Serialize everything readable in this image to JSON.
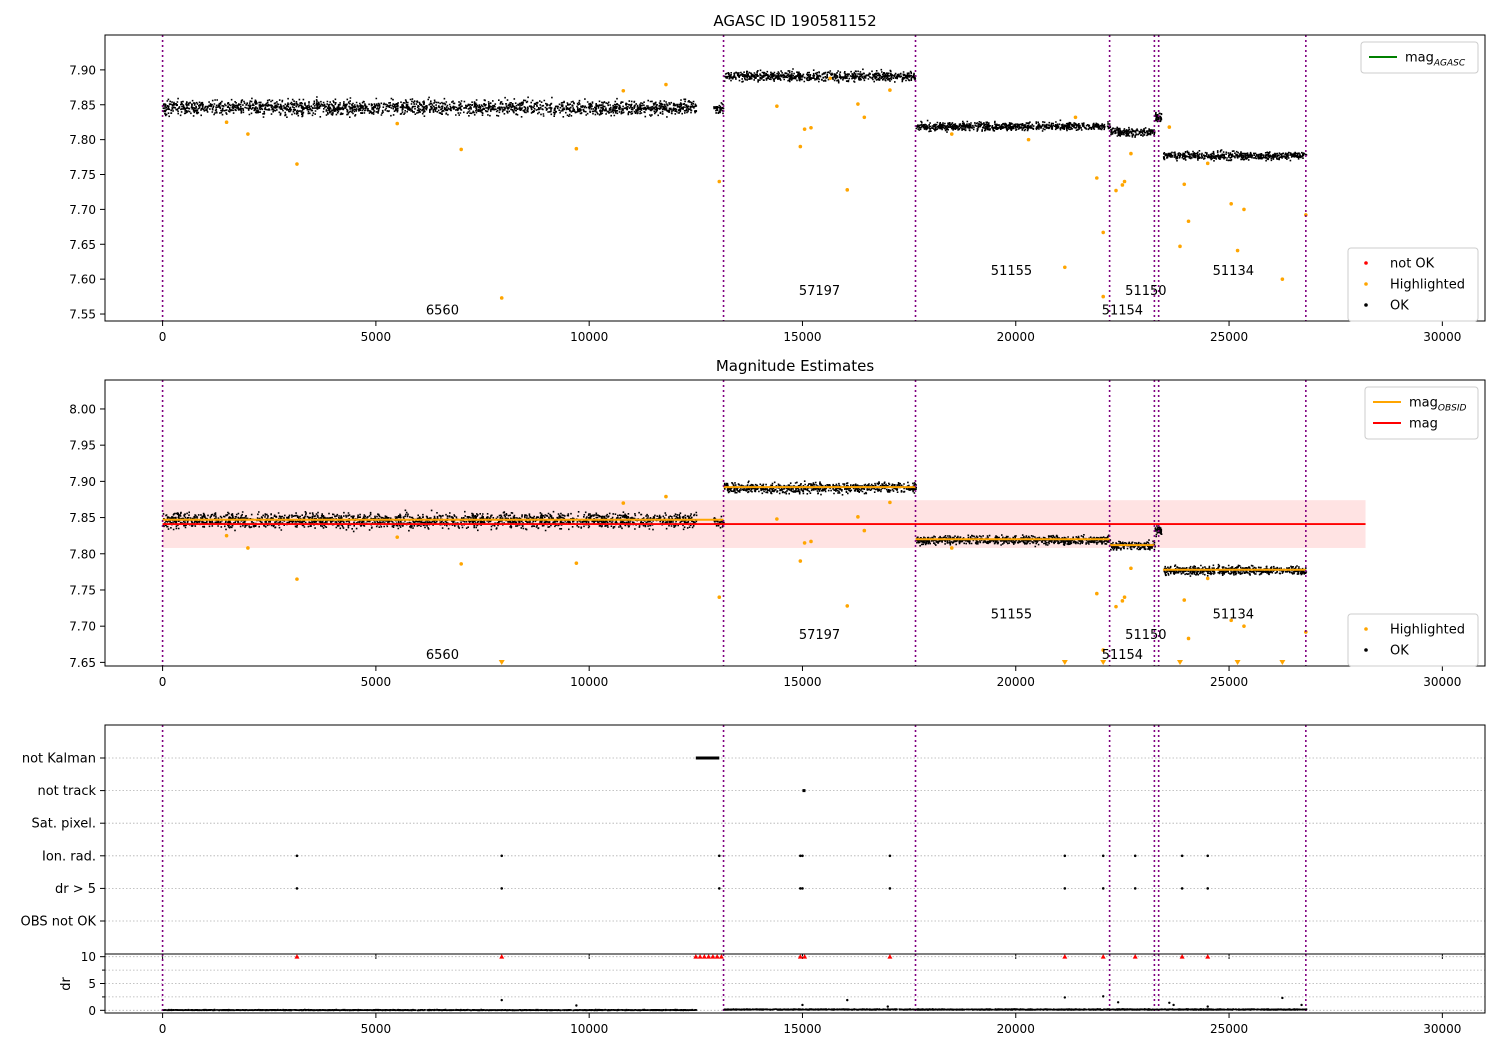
{
  "chart_data": [
    {
      "type": "scatter",
      "title": "AGASC ID 190581152",
      "xlim": [
        -1350,
        31000
      ],
      "ylim": [
        7.54,
        7.95
      ],
      "x_ticks": [
        0,
        5000,
        10000,
        15000,
        20000,
        25000,
        30000
      ],
      "y_ticks": [
        7.55,
        7.6,
        7.65,
        7.7,
        7.75,
        7.8,
        7.85,
        7.9
      ],
      "grid": false,
      "legend_upper": {
        "position": "upper right",
        "entries": [
          {
            "label": "mag",
            "sub": "AGASC",
            "color": "#008000"
          }
        ]
      },
      "legend_lower": {
        "position": "lower right",
        "entries": [
          {
            "label": "not OK",
            "color": "#ff0000"
          },
          {
            "label": "Highlighted",
            "color": "#ffa500"
          },
          {
            "label": "OK",
            "color": "#000000"
          }
        ]
      },
      "obsid_lines_x": [
        0,
        13150,
        17650,
        22200,
        23250,
        23350,
        26800
      ],
      "obsid_labels": [
        {
          "text": "6560",
          "x": 6560,
          "y": 7.555
        },
        {
          "text": "57197",
          "x": 15400,
          "y": 7.583
        },
        {
          "text": "51155",
          "x": 19900,
          "y": 7.612
        },
        {
          "text": "51154",
          "x": 22500,
          "y": 7.555
        },
        {
          "text": "51150",
          "x": 23050,
          "y": 7.583
        },
        {
          "text": "51134",
          "x": 25100,
          "y": 7.612
        }
      ],
      "segments": [
        {
          "x": [
            0,
            12500
          ],
          "mean": 7.847,
          "spread": 0.018
        },
        {
          "x": [
            12900,
            13150
          ],
          "mean": 7.845,
          "spread": 0.012
        },
        {
          "x": [
            13150,
            17650
          ],
          "mean": 7.892,
          "spread": 0.012
        },
        {
          "x": [
            17650,
            22200
          ],
          "mean": 7.82,
          "spread": 0.01
        },
        {
          "x": [
            22200,
            23250
          ],
          "mean": 7.812,
          "spread": 0.01
        },
        {
          "x": [
            23250,
            23400
          ],
          "mean": 7.833,
          "spread": 0.012
        },
        {
          "x": [
            23450,
            26800
          ],
          "mean": 7.778,
          "spread": 0.01
        }
      ],
      "highlighted_points": [
        [
          3150,
          7.765
        ],
        [
          2000,
          7.808
        ],
        [
          7000,
          7.786
        ],
        [
          9700,
          7.787
        ],
        [
          7950,
          7.573
        ],
        [
          13050,
          7.74
        ],
        [
          14400,
          7.848
        ],
        [
          14950,
          7.79
        ],
        [
          15050,
          7.815
        ],
        [
          15200,
          7.817
        ],
        [
          15650,
          7.888
        ],
        [
          16050,
          7.728
        ],
        [
          16300,
          7.851
        ],
        [
          16450,
          7.832
        ],
        [
          17050,
          7.871
        ],
        [
          21150,
          7.617
        ],
        [
          21900,
          7.745
        ],
        [
          22050,
          7.667
        ],
        [
          22050,
          7.575
        ],
        [
          22350,
          7.727
        ],
        [
          22500,
          7.735
        ],
        [
          22550,
          7.74
        ],
        [
          22700,
          7.78
        ],
        [
          23850,
          7.647
        ],
        [
          23950,
          7.736
        ],
        [
          24050,
          7.683
        ],
        [
          24500,
          7.766
        ],
        [
          25050,
          7.708
        ],
        [
          25200,
          7.641
        ],
        [
          25350,
          7.7
        ],
        [
          26250,
          7.6
        ],
        [
          26800,
          7.692
        ],
        [
          1500,
          7.825
        ],
        [
          5500,
          7.823
        ],
        [
          10800,
          7.87
        ],
        [
          11800,
          7.879
        ],
        [
          18500,
          7.808
        ],
        [
          20300,
          7.8
        ],
        [
          21400,
          7.832
        ],
        [
          23600,
          7.818
        ]
      ]
    },
    {
      "type": "scatter",
      "title": "Magnitude Estimates",
      "xlim": [
        -1350,
        31000
      ],
      "ylim": [
        7.645,
        8.04
      ],
      "x_ticks": [
        0,
        5000,
        10000,
        15000,
        20000,
        25000,
        30000
      ],
      "y_ticks": [
        7.65,
        7.7,
        7.75,
        7.8,
        7.85,
        7.9,
        7.95,
        8.0
      ],
      "grid": false,
      "legend_upper": {
        "position": "upper right",
        "entries": [
          {
            "label": "mag",
            "sub": "OBSID",
            "color": "#ffa500"
          },
          {
            "label": "mag",
            "sub": "",
            "color": "#ff0000"
          }
        ]
      },
      "legend_lower": {
        "position": "lower right",
        "entries": [
          {
            "label": "Highlighted",
            "color": "#ffa500"
          },
          {
            "label": "OK",
            "color": "#000000"
          }
        ]
      },
      "overall_mag": {
        "value": 7.841,
        "band": [
          7.808,
          7.874
        ],
        "x": [
          0,
          28200
        ]
      },
      "obsid_lines_x": [
        0,
        13150,
        17650,
        22200,
        23250,
        23350,
        26800
      ],
      "obsid_labels": [
        {
          "text": "6560",
          "x": 6560,
          "y": 7.66
        },
        {
          "text": "57197",
          "x": 15400,
          "y": 7.688
        },
        {
          "text": "51155",
          "x": 19900,
          "y": 7.716
        },
        {
          "text": "51154",
          "x": 22500,
          "y": 7.66
        },
        {
          "text": "51150",
          "x": 23050,
          "y": 7.688
        },
        {
          "text": "51134",
          "x": 25100,
          "y": 7.716
        }
      ],
      "obsid_means": [
        {
          "x": [
            0,
            12500
          ],
          "mean": 7.847
        },
        {
          "x": [
            12500,
            13150
          ],
          "mean": 7.847
        },
        {
          "x": [
            13150,
            17650
          ],
          "mean": 7.892
        },
        {
          "x": [
            17650,
            22200
          ],
          "mean": 7.82
        },
        {
          "x": [
            22200,
            23250
          ],
          "mean": 7.812
        },
        {
          "x": [
            23450,
            26800
          ],
          "mean": 7.778
        }
      ],
      "segments": [
        {
          "x": [
            0,
            12500
          ],
          "mean": 7.847,
          "spread": 0.018
        },
        {
          "x": [
            12900,
            13150
          ],
          "mean": 7.845,
          "spread": 0.012
        },
        {
          "x": [
            13150,
            17650
          ],
          "mean": 7.892,
          "spread": 0.012
        },
        {
          "x": [
            17650,
            22200
          ],
          "mean": 7.82,
          "spread": 0.01
        },
        {
          "x": [
            22200,
            23250
          ],
          "mean": 7.812,
          "spread": 0.01
        },
        {
          "x": [
            23250,
            23400
          ],
          "mean": 7.833,
          "spread": 0.012
        },
        {
          "x": [
            23450,
            26800
          ],
          "mean": 7.778,
          "spread": 0.01
        }
      ],
      "highlighted_points": [
        [
          3150,
          7.765
        ],
        [
          2000,
          7.808
        ],
        [
          7000,
          7.786
        ],
        [
          9700,
          7.787
        ],
        [
          13050,
          7.74
        ],
        [
          14400,
          7.848
        ],
        [
          14950,
          7.79
        ],
        [
          15050,
          7.815
        ],
        [
          15200,
          7.817
        ],
        [
          16050,
          7.728
        ],
        [
          16300,
          7.851
        ],
        [
          16450,
          7.832
        ],
        [
          17050,
          7.871
        ],
        [
          21900,
          7.745
        ],
        [
          22350,
          7.727
        ],
        [
          22500,
          7.735
        ],
        [
          22550,
          7.74
        ],
        [
          22700,
          7.78
        ],
        [
          23950,
          7.736
        ],
        [
          24050,
          7.683
        ],
        [
          24500,
          7.766
        ],
        [
          25050,
          7.708
        ],
        [
          25350,
          7.7
        ],
        [
          26800,
          7.692
        ],
        [
          22050,
          7.667
        ],
        [
          1500,
          7.825
        ],
        [
          5500,
          7.823
        ],
        [
          10800,
          7.87
        ],
        [
          11800,
          7.879
        ],
        [
          18500,
          7.808
        ]
      ],
      "clipped_points_x": [
        7950,
        21150,
        22050,
        23850,
        25200,
        26250
      ]
    },
    {
      "type": "scatter",
      "title": "",
      "xlim": [
        -1350,
        31000
      ],
      "x_ticks": [
        0,
        5000,
        10000,
        15000,
        20000,
        25000,
        30000
      ],
      "flag_rows": [
        "not Kalman",
        "not track",
        "Sat. pixel.",
        "Ion. rad.",
        "dr > 5",
        "OBS not OK"
      ],
      "obsid_lines_x": [
        0,
        13150,
        17650,
        22200,
        23250,
        23350,
        26800
      ],
      "flag_events": {
        "not Kalman": [
          [
            12500,
            13050
          ]
        ],
        "not track": [
          [
            15000,
            15050
          ]
        ],
        "Sat. pixel.": [],
        "Ion. rad.": [
          3150,
          7950,
          13050,
          14950,
          15000,
          17050,
          21150,
          22050,
          22800,
          23900,
          24500
        ],
        "dr > 5": [
          3150,
          7950,
          13050,
          14950,
          15000,
          17050,
          21150,
          22050,
          22800,
          23900,
          24500
        ],
        "OBS not OK": []
      }
    },
    {
      "type": "scatter",
      "title": "",
      "ylabel": "dr",
      "xlim": [
        -1350,
        31000
      ],
      "ylim": [
        -0.5,
        10.5
      ],
      "x_ticks": [
        0,
        5000,
        10000,
        15000,
        20000,
        25000,
        30000
      ],
      "y_ticks": [
        0,
        5,
        10
      ],
      "y_minor_ticks": [
        2.5,
        7.5
      ],
      "obsid_lines_x": [
        0,
        13150,
        17650,
        22200,
        23250,
        23350,
        26800
      ],
      "dr_segments": [
        {
          "x": [
            0,
            12500
          ],
          "mean": 0.2,
          "spread": 0.3
        },
        {
          "x": [
            13150,
            26800
          ],
          "mean": 0.3,
          "spread": 0.4
        }
      ],
      "dr_outliers": [
        [
          7950,
          1.9
        ],
        [
          9700,
          0.9
        ],
        [
          15000,
          1.0
        ],
        [
          16050,
          1.9
        ],
        [
          17000,
          0.7
        ],
        [
          21150,
          2.4
        ],
        [
          22050,
          2.6
        ],
        [
          22400,
          1.5
        ],
        [
          23600,
          1.4
        ],
        [
          23700,
          1.0
        ],
        [
          24500,
          0.7
        ],
        [
          26250,
          2.3
        ],
        [
          26700,
          1.0
        ]
      ],
      "dr_clipped_x": [
        3150,
        7950,
        12500,
        12600,
        12700,
        12800,
        12900,
        13000,
        13100,
        14950,
        15050,
        17050,
        21150,
        22050,
        22800,
        23900,
        24500
      ]
    }
  ]
}
